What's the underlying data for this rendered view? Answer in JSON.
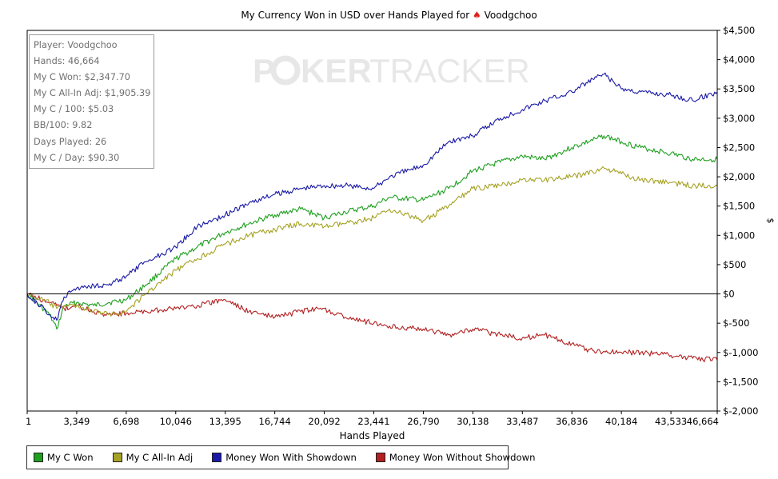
{
  "title": {
    "text_before": "My Currency Won in USD over Hands Played for ",
    "player": "Voodgchoo"
  },
  "watermark": {
    "part1": "P",
    "part2": "KER",
    "part3": "TRACKER"
  },
  "stats": [
    "Player: Voodgchoo",
    "Hands: 46,664",
    "My C Won: $2,347.70",
    "My C All-In Adj: $1,905.39",
    "My C / 100: $5.03",
    "BB/100: 9.82",
    "Days Played: 26",
    "My C / Day: $90.30"
  ],
  "chart_data": {
    "type": "line",
    "title": "My Currency Won in USD over Hands Played for Voodgchoo",
    "xlabel": "Hands Played",
    "ylabel": "$",
    "xlim": [
      1,
      46664
    ],
    "ylim": [
      -2000,
      4500
    ],
    "x_ticks": [
      1,
      3349,
      6698,
      10046,
      13395,
      16744,
      20092,
      23441,
      26790,
      30138,
      33487,
      36836,
      40184,
      43533,
      46664
    ],
    "x_tick_labels": [
      "1",
      "3,349",
      "6,698",
      "10,046",
      "13,395",
      "16,744",
      "20,092",
      "23,441",
      "26,790",
      "30,138",
      "33,487",
      "36,836",
      "40,184",
      "43,533",
      "46,664"
    ],
    "y_ticks": [
      -2000,
      -1500,
      -1000,
      -500,
      0,
      500,
      1000,
      1500,
      2000,
      2500,
      3000,
      3500,
      4000,
      4500
    ],
    "y_tick_labels": [
      "$-2,000",
      "$-1,500",
      "$-1,000",
      "$-500",
      "$0",
      "$500",
      "$1,000",
      "$1,500",
      "$2,000",
      "$2,500",
      "$3,000",
      "$3,500",
      "$4,000",
      "$4,500"
    ],
    "y_axis_side": "right",
    "grid": false,
    "legend_position": "bottom",
    "x": [
      1,
      1500,
      2000,
      2500,
      3349,
      4500,
      5500,
      6698,
      8000,
      10046,
      11500,
      13395,
      15000,
      16744,
      18500,
      20092,
      21500,
      23441,
      24500,
      26790,
      28500,
      30138,
      32000,
      33487,
      35000,
      36836,
      38500,
      39000,
      40184,
      41500,
      43533,
      45000,
      46664
    ],
    "series": [
      {
        "name": "My C Won",
        "color": "#1fa01f",
        "values": [
          0,
          -350,
          -600,
          -200,
          -150,
          -200,
          -150,
          -100,
          150,
          600,
          800,
          1050,
          1200,
          1350,
          1450,
          1300,
          1400,
          1500,
          1650,
          1600,
          1800,
          2100,
          2250,
          2350,
          2300,
          2500,
          2650,
          2700,
          2600,
          2500,
          2400,
          2300,
          2300
        ]
      },
      {
        "name": "My C All-In Adj",
        "color": "#a6a224",
        "values": [
          0,
          -150,
          -250,
          -200,
          -200,
          -300,
          -350,
          -300,
          0,
          400,
          600,
          850,
          1000,
          1100,
          1200,
          1150,
          1200,
          1300,
          1450,
          1250,
          1500,
          1800,
          1850,
          1950,
          1950,
          2000,
          2100,
          2150,
          2050,
          1950,
          1900,
          1850,
          1850
        ]
      },
      {
        "name": "Money Won With Showdown",
        "color": "#1a1aa6",
        "values": [
          0,
          -350,
          -450,
          -50,
          100,
          150,
          150,
          300,
          550,
          800,
          1150,
          1350,
          1550,
          1700,
          1800,
          1850,
          1850,
          1800,
          2000,
          2200,
          2600,
          2700,
          3000,
          3150,
          3300,
          3450,
          3700,
          3750,
          3500,
          3450,
          3400,
          3300,
          3450
        ]
      },
      {
        "name": "Money Won Without Showdown",
        "color": "#b22020",
        "values": [
          0,
          -150,
          -200,
          -250,
          -200,
          -300,
          -350,
          -330,
          -300,
          -250,
          -200,
          -100,
          -300,
          -400,
          -300,
          -250,
          -400,
          -500,
          -550,
          -600,
          -700,
          -600,
          -700,
          -750,
          -700,
          -850,
          -1000,
          -980,
          -1000,
          -1000,
          -1050,
          -1100,
          -1130
        ]
      }
    ]
  }
}
